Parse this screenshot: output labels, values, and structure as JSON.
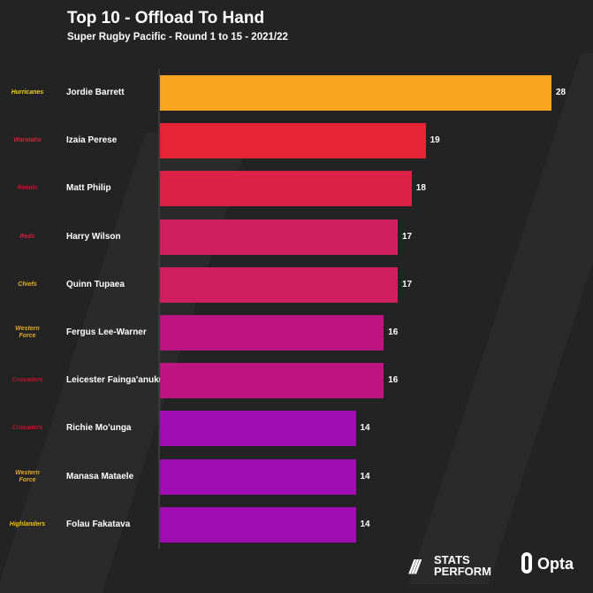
{
  "chart_data": {
    "type": "bar",
    "orientation": "horizontal",
    "title": "Top 10 - Offload To Hand",
    "subtitle": "Super Rugby Pacific - Round 1 to 15 - 2021/22",
    "xlabel": "",
    "ylabel": "",
    "xlim": [
      0,
      28
    ],
    "grid": false,
    "categories": [
      "Jordie Barrett",
      "Izaia Perese",
      "Matt Philip",
      "Harry Wilson",
      "Quinn Tupaea",
      "Fergus Lee-Warner",
      "Leicester Fainga'anuku",
      "Richie Mo'unga",
      "Manasa Mataele",
      "Folau Fakatava"
    ],
    "values": [
      28,
      19,
      18,
      17,
      17,
      16,
      16,
      14,
      14,
      14
    ],
    "teams": [
      "Hurricanes",
      "Waratahs",
      "Rebels",
      "Reds",
      "Chiefs",
      "Western Force",
      "Crusaders",
      "Crusaders",
      "Western Force",
      "Highlanders"
    ],
    "team_colors": [
      "#f2d21c",
      "#d6213a",
      "#c8102e",
      "#d31f3a",
      "#e8b21a",
      "#e3a92c",
      "#c8102e",
      "#c8102e",
      "#e3a92c",
      "#f2c500"
    ],
    "colors": [
      "#f9a51f",
      "#e52535",
      "#dc2146",
      "#cf1f5e",
      "#cf1f5e",
      "#bd1481",
      "#bd1481",
      "#a00db3",
      "#a00db3",
      "#a00db3"
    ]
  },
  "branding": {
    "stats_perform_line1": "STATS",
    "stats_perform_line2": "PERFORM",
    "opta": "Opta"
  }
}
